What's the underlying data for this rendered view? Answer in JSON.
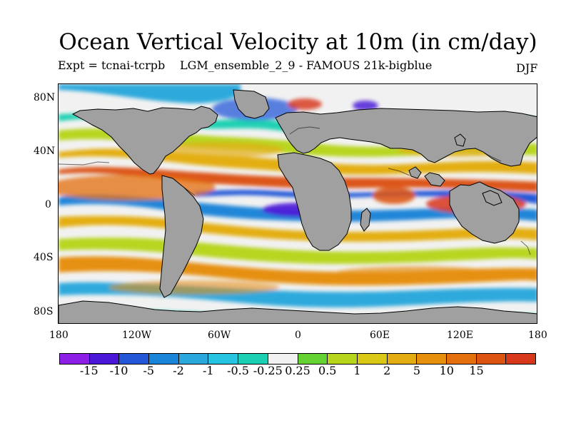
{
  "title": "Ocean Vertical Velocity at 10m (in cm/day)",
  "experiment_label": "Expt = tcnai-tcrpb",
  "run_label": "LGM_ensemble_2_9 - FAMOUS 21k-bigblue",
  "season": "DJF",
  "axes": {
    "lat_ticks": [
      "80N",
      "40N",
      "0",
      "40S",
      "80S"
    ],
    "lon_ticks": [
      "180",
      "120W",
      "60W",
      "0",
      "60E",
      "120E",
      "180"
    ]
  },
  "colorbar": {
    "colors": [
      "#8d1ee6",
      "#4a16d8",
      "#2456d8",
      "#1a84d8",
      "#2aa8dc",
      "#27c4e2",
      "#1bd0b2",
      "#f1f1f1",
      "#63d232",
      "#b7d51a",
      "#d9c816",
      "#e3ad11",
      "#e68f0d",
      "#e3700d",
      "#dc5312",
      "#d7381c"
    ],
    "labels": [
      "-15",
      "-10",
      "-5",
      "-2",
      "-1",
      "-0.5",
      "-0.25",
      "0.25",
      "0.5",
      "1",
      "2",
      "5",
      "10",
      "15"
    ],
    "land_color": "#a0a0a0"
  }
}
